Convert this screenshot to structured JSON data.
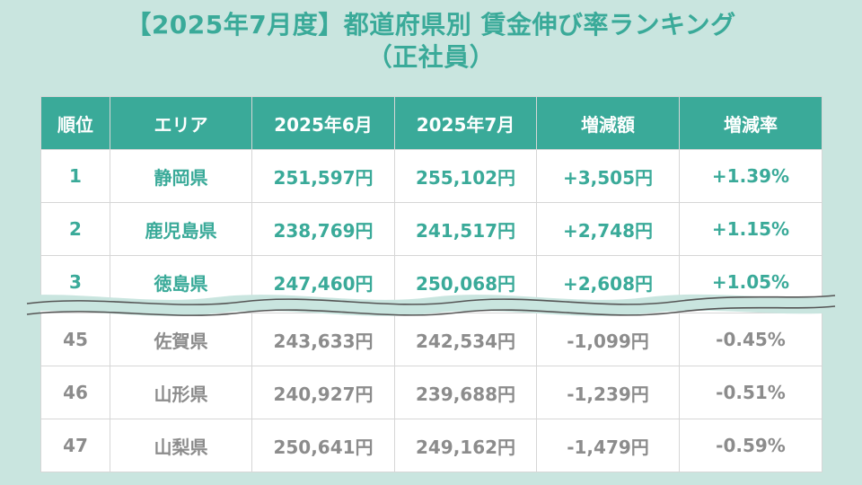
{
  "title": {
    "line1": "【2025年7月度】都道府県別 賃金伸び率ランキング",
    "line2": "（正社員）"
  },
  "colors": {
    "accent": "#3aaa99",
    "background": "#c9e5df",
    "muted_text": "#8c8c8c"
  },
  "chart_data": {
    "type": "table",
    "columns": [
      "順位",
      "エリア",
      "2025年6月",
      "2025年7月",
      "増減額",
      "増減率"
    ],
    "top_rows": [
      [
        "1",
        "静岡県",
        "251,597円",
        "255,102円",
        "+3,505円",
        "+1.39%"
      ],
      [
        "2",
        "鹿児島県",
        "238,769円",
        "241,517円",
        "+2,748円",
        "+1.15%"
      ],
      [
        "3",
        "徳島県",
        "247,460円",
        "250,068円",
        "+2,608円",
        "+1.05%"
      ]
    ],
    "bottom_rows": [
      [
        "45",
        "佐賀県",
        "243,633円",
        "242,534円",
        "-1,099円",
        "-0.45%"
      ],
      [
        "46",
        "山形県",
        "240,927円",
        "239,688円",
        "-1,239円",
        "-0.51%"
      ],
      [
        "47",
        "山梨県",
        "250,641円",
        "249,162円",
        "-1,479円",
        "-0.59%"
      ]
    ]
  }
}
